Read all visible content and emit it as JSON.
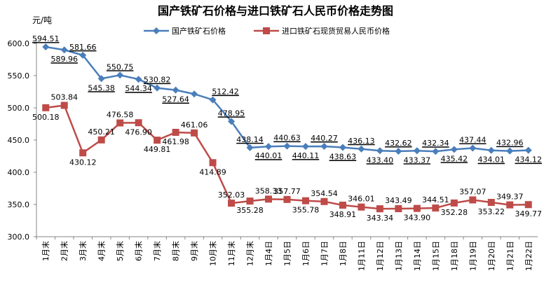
{
  "chart_data": {
    "type": "line",
    "title": "国产铁矿石价格与进口铁矿石人民币价格走势图",
    "ylabel": "元/吨",
    "xlabel": "",
    "ylim": [
      300,
      600
    ],
    "yticks": [
      "600.0",
      "550.0",
      "500.0",
      "450.0",
      "400.0",
      "350.0",
      "300.0"
    ],
    "ytick_values": [
      600,
      550,
      500,
      450,
      400,
      350,
      300
    ],
    "categories": [
      "1月末",
      "2月末",
      "3月末",
      "4月末",
      "5月末",
      "6月末",
      "7月末",
      "8月末",
      "9月末",
      "10月末",
      "11月末",
      "12月末",
      "1月4日",
      "1月5日",
      "1月6日",
      "1月7日",
      "1月8日",
      "1月11日",
      "1月12日",
      "1月13日",
      "1月14日",
      "1月15日",
      "1月18日",
      "1月19日",
      "1月20日",
      "1月21日",
      "1月22日"
    ],
    "legend_position": "top",
    "grid": false,
    "series": [
      {
        "name": "国产铁矿石价格",
        "color": "#4a7ebb",
        "marker": "diamond",
        "values": [
          594.51,
          589.96,
          581.66,
          545.38,
          550.75,
          544.34,
          530.82,
          527.64,
          521.5,
          512.42,
          478.95,
          438.14,
          440.01,
          440.63,
          440.11,
          440.27,
          438.63,
          436.13,
          433.4,
          432.62,
          433.37,
          432.34,
          435.42,
          437.44,
          434.01,
          432.96,
          434.12
        ],
        "labels": [
          "594.51",
          "589.96",
          "581.66",
          "545.38",
          "550.75",
          "544.34",
          "530.82",
          "527.64",
          "",
          "512.42",
          "478.95",
          "438.14",
          "440.01",
          "440.63",
          "440.11",
          "440.27",
          "438.63",
          "436.13",
          "433.40",
          "432.62",
          "433.37",
          "432.34",
          "435.42",
          "437.44",
          "434.01",
          "432.96",
          "434.12"
        ]
      },
      {
        "name": "进口铁矿石现货贸易人民币价格",
        "color": "#be4b48",
        "marker": "square",
        "values": [
          500.18,
          503.84,
          430.12,
          450.21,
          476.58,
          476.9,
          449.81,
          461.98,
          461.06,
          414.89,
          352.03,
          355.28,
          358.33,
          357.77,
          355.78,
          354.54,
          348.91,
          346.01,
          343.34,
          343.49,
          343.9,
          344.51,
          352.28,
          357.07,
          353.22,
          349.37,
          349.77
        ],
        "labels": [
          "500.18",
          "503.84",
          "430.12",
          "450.21",
          "476.58",
          "476.90",
          "449.81",
          "461.98",
          "461.06",
          "414.89",
          "352.03",
          "355.28",
          "358.33",
          "357.77",
          "355.78",
          "354.54",
          "348.91",
          "346.01",
          "343.34",
          "343.49",
          "343.90",
          "344.51",
          "352.28",
          "357.07",
          "353.22",
          "349.37",
          "349.77"
        ]
      }
    ]
  }
}
